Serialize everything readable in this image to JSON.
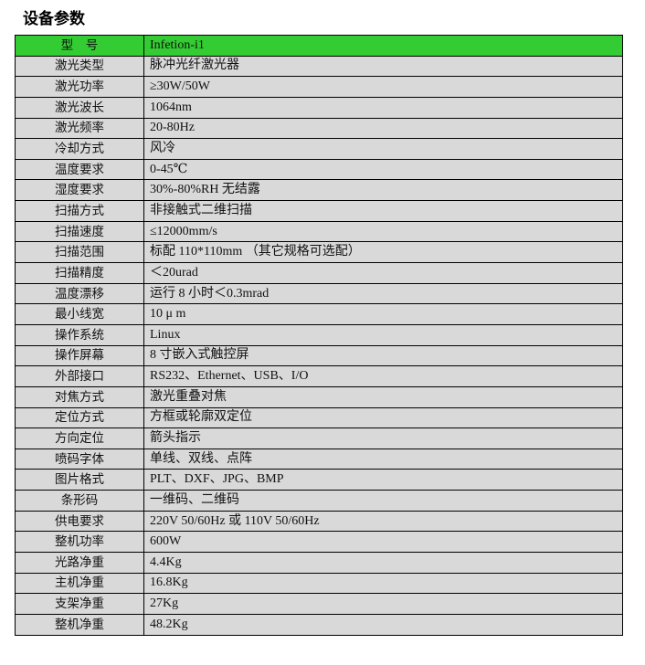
{
  "title": "设备参数",
  "header_color": "#33cc33",
  "rows": [
    {
      "k": "型　号",
      "v": "Infetion-i1"
    },
    {
      "k": "激光类型",
      "v": "脉冲光纤激光器"
    },
    {
      "k": "激光功率",
      "v": "≥30W/50W"
    },
    {
      "k": "激光波长",
      "v": "1064nm"
    },
    {
      "k": "激光频率",
      "v": "20-80Hz"
    },
    {
      "k": "冷却方式",
      "v": "风冷"
    },
    {
      "k": "温度要求",
      "v": "0-45℃"
    },
    {
      "k": "湿度要求",
      "v": "30%-80%RH  无结露"
    },
    {
      "k": "扫描方式",
      "v": "非接触式二维扫描"
    },
    {
      "k": "扫描速度",
      "v": "≤12000mm/s"
    },
    {
      "k": "扫描范围",
      "v": "标配 110*110mm （其它规格可选配）"
    },
    {
      "k": "扫描精度",
      "v": "＜20urad"
    },
    {
      "k": "温度漂移",
      "v": "运行 8 小时＜0.3mrad"
    },
    {
      "k": "最小线宽",
      "v": "10 μ m"
    },
    {
      "k": "操作系统",
      "v": "Linux"
    },
    {
      "k": "操作屏幕",
      "v": "8 寸嵌入式触控屏"
    },
    {
      "k": "外部接口",
      "v": "RS232、Ethernet、USB、I/O"
    },
    {
      "k": "对焦方式",
      "v": "激光重叠对焦"
    },
    {
      "k": "定位方式",
      "v": "方框或轮廓双定位"
    },
    {
      "k": "方向定位",
      "v": "箭头指示"
    },
    {
      "k": "喷码字体",
      "v": "单线、双线、点阵"
    },
    {
      "k": "图片格式",
      "v": "PLT、DXF、JPG、BMP"
    },
    {
      "k": "条形码",
      "v": "一维码、二维码"
    },
    {
      "k": "供电要求",
      "v": "220V 50/60Hz  或  110V 50/60Hz"
    },
    {
      "k": "整机功率",
      "v": "600W"
    },
    {
      "k": "光路净重",
      "v": "4.4Kg"
    },
    {
      "k": "主机净重",
      "v": "16.8Kg"
    },
    {
      "k": "支架净重",
      "v": "27Kg"
    },
    {
      "k": "整机净重",
      "v": "48.2Kg"
    }
  ]
}
